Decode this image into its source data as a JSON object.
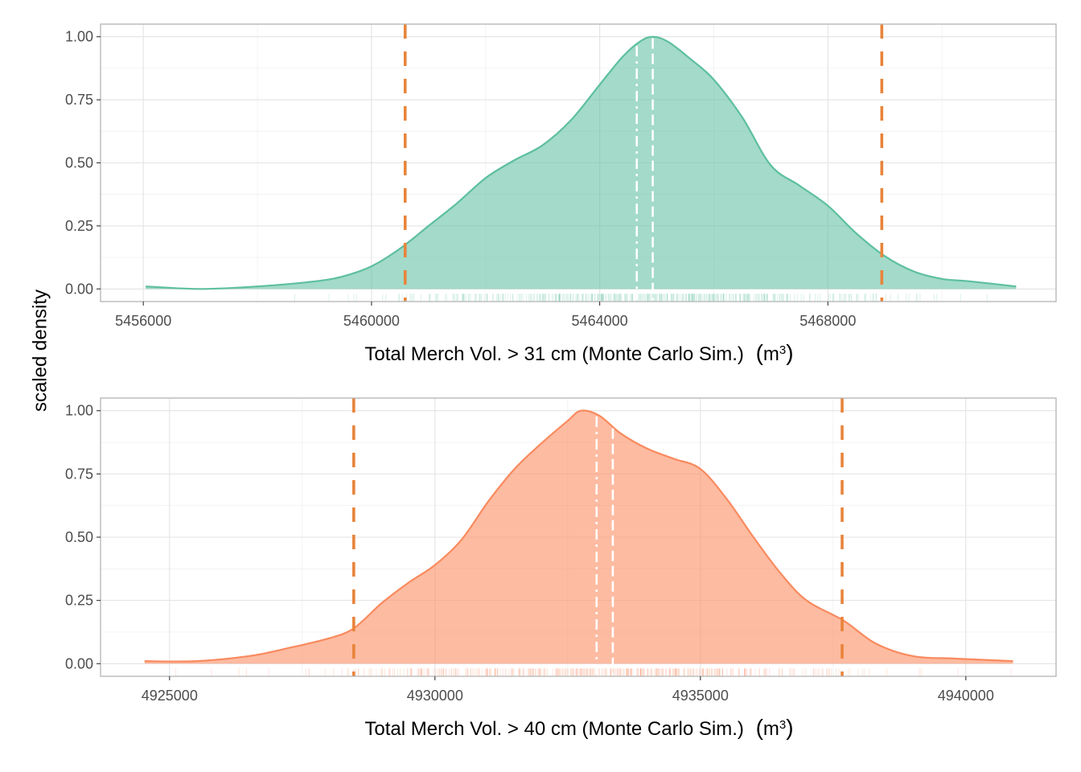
{
  "chart_data": [
    {
      "type": "area",
      "title": "",
      "xlabel": "Total Merch Vol. > 31 cm (Monte Carlo Sim.)",
      "xlabel_unit": "m",
      "xlabel_unit_exp": "3",
      "ylabel": "scaled density",
      "xlim": [
        5455250,
        5472000
      ],
      "ylim": [
        -0.05,
        1.05
      ],
      "x_ticks": [
        5456000,
        5460000,
        5464000,
        5468000
      ],
      "x_tick_labels": [
        "5456000",
        "5460000",
        "5464000",
        "5468000"
      ],
      "y_ticks": [
        0,
        0.25,
        0.5,
        0.75,
        1.0
      ],
      "y_tick_labels": [
        "0.00",
        "0.25",
        "0.50",
        "0.75",
        "1.00"
      ],
      "grid": true,
      "fill_color": "#66c2a5",
      "line_color": "#5dbf9f",
      "series": [
        {
          "name": "scaled density",
          "x": [
            5456040,
            5457000,
            5458000,
            5459000,
            5459500,
            5460000,
            5460500,
            5461000,
            5461500,
            5462000,
            5462500,
            5463000,
            5463500,
            5464000,
            5464400,
            5464700,
            5464930,
            5465200,
            5465600,
            5466000,
            5466500,
            5467000,
            5467500,
            5468000,
            5468500,
            5469000,
            5469500,
            5470000,
            5470500,
            5471300
          ],
          "y": [
            0.01,
            0.0,
            0.01,
            0.03,
            0.05,
            0.09,
            0.16,
            0.25,
            0.34,
            0.44,
            0.51,
            0.57,
            0.67,
            0.81,
            0.92,
            0.98,
            1.0,
            0.98,
            0.91,
            0.83,
            0.68,
            0.49,
            0.41,
            0.33,
            0.22,
            0.13,
            0.07,
            0.04,
            0.03,
            0.01
          ]
        }
      ],
      "reference_lines": [
        {
          "name": "lower-interval",
          "x": 5460590,
          "style": "dashed",
          "color": "#e8843b"
        },
        {
          "name": "upper-interval",
          "x": 5468945,
          "style": "dashed",
          "color": "#e8843b"
        },
        {
          "name": "mean",
          "x": 5464650,
          "style": "dotdash",
          "color": "#ffffff"
        },
        {
          "name": "median",
          "x": 5464930,
          "style": "dashed",
          "color": "#ffffff"
        }
      ],
      "rug_range": [
        5456000,
        5471300
      ]
    },
    {
      "type": "area",
      "title": "",
      "xlabel": "Total Merch Vol. > 40 cm (Monte Carlo Sim.)",
      "xlabel_unit": "m",
      "xlabel_unit_exp": "3",
      "ylabel": "scaled density",
      "xlim": [
        4923700,
        4941700
      ],
      "ylim": [
        -0.05,
        1.05
      ],
      "x_ticks": [
        4925000,
        4930000,
        4935000,
        4940000
      ],
      "x_tick_labels": [
        "4925000",
        "4930000",
        "4935000",
        "4940000"
      ],
      "y_ticks": [
        0,
        0.25,
        0.5,
        0.75,
        1.0
      ],
      "y_tick_labels": [
        "0.00",
        "0.25",
        "0.50",
        "0.75",
        "1.00"
      ],
      "grid": true,
      "fill_color": "#fc8d62",
      "line_color": "#f98a5e",
      "series": [
        {
          "name": "scaled density",
          "x": [
            4924530,
            4925500,
            4926500,
            4927200,
            4928000,
            4928470,
            4929000,
            4929500,
            4930000,
            4930500,
            4931000,
            4931500,
            4932000,
            4932500,
            4932750,
            4933100,
            4933500,
            4934000,
            4934500,
            4935000,
            4935500,
            4936000,
            4936500,
            4937000,
            4937700,
            4938300,
            4939000,
            4939800,
            4940890
          ],
          "y": [
            0.01,
            0.01,
            0.03,
            0.06,
            0.1,
            0.14,
            0.24,
            0.32,
            0.39,
            0.49,
            0.64,
            0.77,
            0.87,
            0.96,
            1.0,
            0.98,
            0.91,
            0.85,
            0.81,
            0.77,
            0.65,
            0.5,
            0.36,
            0.25,
            0.17,
            0.08,
            0.03,
            0.02,
            0.01
          ]
        }
      ],
      "reference_lines": [
        {
          "name": "lower-interval",
          "x": 4928470,
          "style": "dashed",
          "color": "#e8843b"
        },
        {
          "name": "upper-interval",
          "x": 4937670,
          "style": "dashed",
          "color": "#e8843b"
        },
        {
          "name": "mean",
          "x": 4933045,
          "style": "dotdash",
          "color": "#ffffff"
        },
        {
          "name": "median",
          "x": 4933350,
          "style": "dashed",
          "color": "#ffffff"
        }
      ],
      "rug_range": [
        4924530,
        4940890
      ]
    }
  ]
}
